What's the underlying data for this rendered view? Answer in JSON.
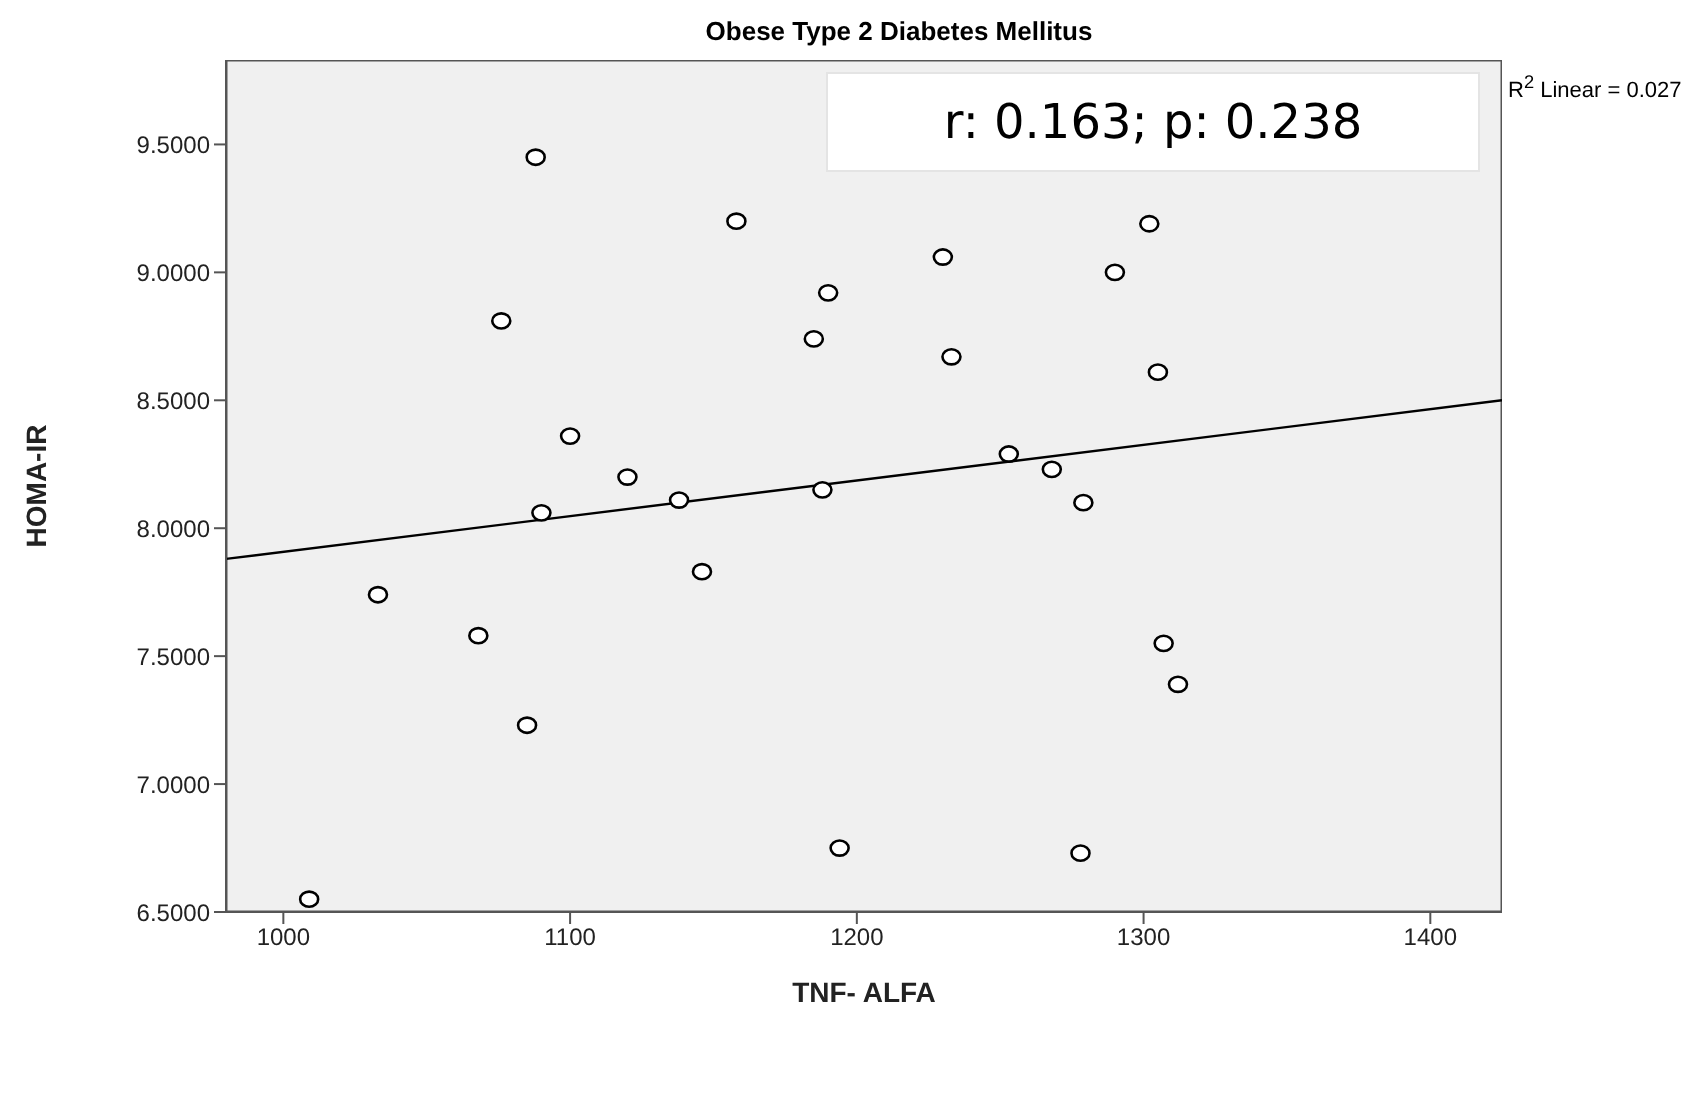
{
  "chart_data": {
    "type": "scatter",
    "title": "Obese Type 2 Diabetes Mellitus",
    "xlabel": "TNF- ALFA",
    "ylabel": "HOMA-IR",
    "annotations": [
      "r: 0.163; p: 0.238",
      "R$^{2}$ Linear = 0.027"
    ],
    "xlim": [
      980,
      1425
    ],
    "xticks": [
      1000,
      1100,
      1200,
      1300,
      1400
    ],
    "ylim": [
      6.5,
      9.83
    ],
    "yticks": [
      {
        "value": 6.5,
        "label": "6.5000"
      },
      {
        "value": 7,
        "label": "7.0000"
      },
      {
        "value": 7.5,
        "label": "7.5000"
      },
      {
        "value": 8,
        "label": "8.0000"
      },
      {
        "value": 8.5,
        "label": "8.5000"
      },
      {
        "value": 9,
        "label": "9.0000"
      },
      {
        "value": 9.5,
        "label": "9.5000"
      }
    ],
    "series": [
      {
        "color": "#000000",
        "marker": "circle",
        "x": [
          1088,
          1158,
          1302,
          1230,
          1290,
          1076,
          1190,
          1185,
          1233,
          1305,
          1100,
          1253,
          1268,
          1120,
          1138,
          1188,
          1279,
          1090,
          1033,
          1146,
          1068,
          1307,
          1312,
          1085,
          1194,
          1278,
          1009
        ],
        "values": [
          9.45,
          9.2,
          9.19,
          9.06,
          9.0,
          8.81,
          8.92,
          8.74,
          8.67,
          8.61,
          8.36,
          8.29,
          8.23,
          8.2,
          8.11,
          8.15,
          8.1,
          8.06,
          7.74,
          7.83,
          7.58,
          7.55,
          7.39,
          7.23,
          6.75,
          6.73,
          6.55
        ]
      },
      {
        "type": "line",
        "color": "#000000",
        "x": [
          980,
          1425
        ],
        "values": [
          7.88,
          8.5
        ]
      }
    ]
  }
}
